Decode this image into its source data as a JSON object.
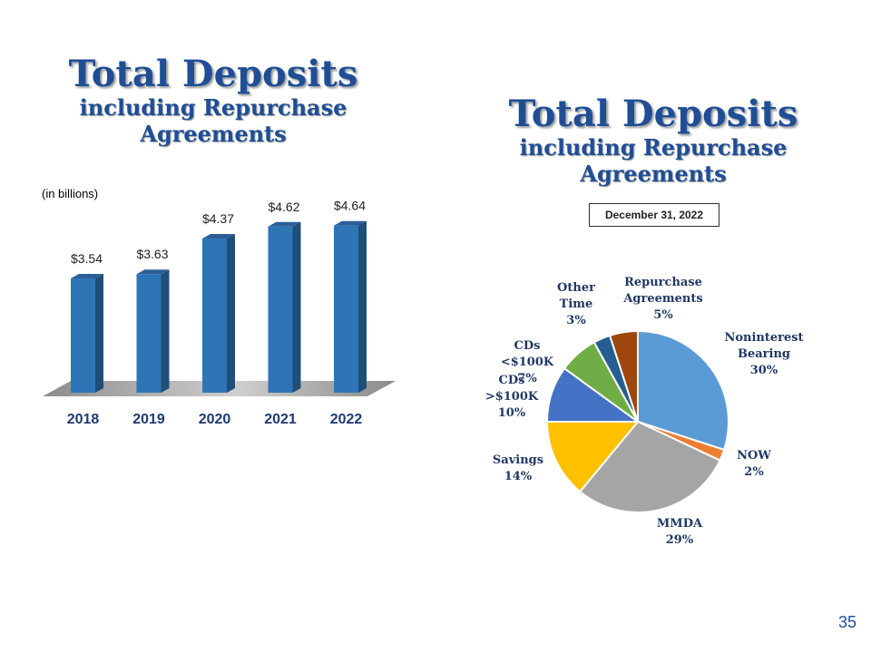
{
  "left_title": {
    "main": "Total Deposits",
    "sub1": "including Repurchase",
    "sub2": "Agreements"
  },
  "right_title": {
    "main": "Total Deposits",
    "sub1": "including Repurchase",
    "sub2": "Agreements"
  },
  "units_note": "(in billions)",
  "date_label": "December 31, 2022",
  "slide_number": "35",
  "colors": {
    "title": "#1f4e96",
    "bar_front": "#2e75b6",
    "bar_side": "#1f4e79",
    "bar_top": "#2b5f96"
  },
  "chart_data": [
    {
      "type": "bar",
      "categories": [
        "2018",
        "2019",
        "2020",
        "2021",
        "2022"
      ],
      "values": [
        3.54,
        3.63,
        4.37,
        4.62,
        4.64
      ],
      "data_labels": [
        "$3.54",
        "$3.63",
        "$4.37",
        "$4.62",
        "$4.64"
      ],
      "ylabel": "(in billions)",
      "grid": false
    },
    {
      "type": "pie",
      "title": "December 31, 2022",
      "slices": [
        {
          "label": "Noninterest Bearing",
          "lines": [
            "Noninterest",
            "Bearing",
            "30%"
          ],
          "value": 30,
          "color": "#5b9bd5"
        },
        {
          "label": "NOW",
          "lines": [
            "NOW",
            "2%"
          ],
          "value": 2,
          "color": "#ed7d31"
        },
        {
          "label": "MMDA",
          "lines": [
            "MMDA",
            "29%"
          ],
          "value": 29,
          "color": "#a5a5a5"
        },
        {
          "label": "Savings",
          "lines": [
            "Savings",
            "14%"
          ],
          "value": 14,
          "color": "#ffc000"
        },
        {
          "label": "CDs >$100K",
          "lines": [
            "CDs",
            ">$100K",
            "10%"
          ],
          "value": 10,
          "color": "#4472c4"
        },
        {
          "label": "CDs <$100K",
          "lines": [
            "CDs",
            "<$100K",
            "7%"
          ],
          "value": 7,
          "color": "#70ad47"
        },
        {
          "label": "Other Time",
          "lines": [
            "Other",
            "Time",
            "3%"
          ],
          "value": 3,
          "color": "#255e91"
        },
        {
          "label": "Repurchase Agreements",
          "lines": [
            "Repurchase",
            "Agreements",
            "5%"
          ],
          "value": 5,
          "color": "#9e480e"
        }
      ]
    }
  ]
}
